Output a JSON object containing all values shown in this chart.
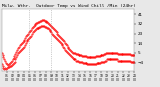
{
  "bg_color": "#e8e8e8",
  "plot_bg": "#ffffff",
  "dot_color": "#ff0000",
  "legend_blue": "#0000cc",
  "legend_red": "#cc0000",
  "y_ticks": [
    -4,
    5,
    14,
    23,
    32,
    41
  ],
  "y_min": -12,
  "y_max": 46,
  "vline_positions": [
    0.21,
    0.37
  ],
  "vline_color": "#888888",
  "marker_size": 0.9,
  "tick_fontsize": 3.0,
  "title_fontsize": 3.2,
  "temp_data": [
    5,
    3,
    1,
    -1,
    -2,
    -4,
    -5,
    -6,
    -5,
    -4,
    -3,
    -2,
    -1,
    0,
    2,
    4,
    6,
    8,
    10,
    11,
    12,
    13,
    14,
    15,
    16,
    17,
    19,
    21,
    22,
    23,
    24,
    25,
    26,
    28,
    29,
    30,
    31,
    32,
    33,
    33,
    34,
    34,
    35,
    35,
    36,
    36,
    36,
    35,
    35,
    34,
    34,
    33,
    32,
    31,
    30,
    29,
    28,
    27,
    26,
    25,
    24,
    23,
    22,
    21,
    20,
    19,
    18,
    17,
    16,
    14,
    13,
    12,
    11,
    10,
    9,
    8,
    7,
    6,
    5,
    5,
    5,
    4,
    4,
    4,
    3,
    3,
    3,
    3,
    2,
    2,
    2,
    2,
    2,
    1,
    1,
    1,
    1,
    1,
    1,
    1,
    1,
    1,
    1,
    2,
    2,
    2,
    2,
    2,
    3,
    3,
    3,
    3,
    4,
    4,
    5,
    5,
    5,
    5,
    5,
    5,
    5,
    5,
    5,
    5,
    5,
    5,
    5,
    4,
    4,
    4,
    4,
    4,
    4,
    4,
    4,
    4,
    4,
    4,
    4,
    4,
    4,
    3,
    3,
    3,
    3,
    3
  ],
  "wind_data": [
    -5,
    -7,
    -9,
    -10,
    -9,
    -10,
    -9,
    -8,
    -8,
    -7,
    -7,
    -6,
    -5,
    -4,
    -3,
    -1,
    1,
    3,
    5,
    6,
    7,
    8,
    9,
    10,
    11,
    12,
    14,
    16,
    17,
    18,
    19,
    20,
    21,
    23,
    24,
    25,
    26,
    27,
    28,
    28,
    28,
    29,
    29,
    30,
    30,
    30,
    30,
    29,
    29,
    28,
    28,
    27,
    26,
    25,
    24,
    23,
    22,
    21,
    20,
    19,
    18,
    17,
    16,
    15,
    14,
    13,
    12,
    11,
    10,
    8,
    7,
    6,
    5,
    4,
    3,
    2,
    1,
    0,
    -1,
    -1,
    -1,
    -2,
    -2,
    -2,
    -3,
    -3,
    -3,
    -3,
    -4,
    -4,
    -4,
    -4,
    -4,
    -5,
    -5,
    -5,
    -5,
    -5,
    -5,
    -5,
    -5,
    -5,
    -5,
    -4,
    -4,
    -4,
    -4,
    -4,
    -3,
    -3,
    -3,
    -3,
    -2,
    -2,
    -1,
    -1,
    -1,
    -1,
    -1,
    -1,
    -1,
    -1,
    -1,
    -1,
    -1,
    -1,
    -2,
    -2,
    -2,
    -2,
    -2,
    -2,
    -2,
    -2,
    -2,
    -2,
    -2,
    -2,
    -2,
    -2,
    -3,
    -3,
    -3,
    -3,
    -3
  ],
  "x_tick_hours": [
    "01",
    "02",
    "03",
    "04",
    "05",
    "06",
    "07",
    "08",
    "09",
    "10",
    "11",
    "12",
    "13",
    "14",
    "15",
    "16",
    "17",
    "18",
    "19",
    "20",
    "21",
    "22",
    "23",
    "24"
  ],
  "x_tick_mins": [
    "00",
    "00",
    "00",
    "00",
    "00",
    "00",
    "00",
    "00",
    "00",
    "00",
    "00",
    "00",
    "00",
    "00",
    "00",
    "00",
    "00",
    "00",
    "00",
    "00",
    "00",
    "00",
    "00",
    "00"
  ]
}
